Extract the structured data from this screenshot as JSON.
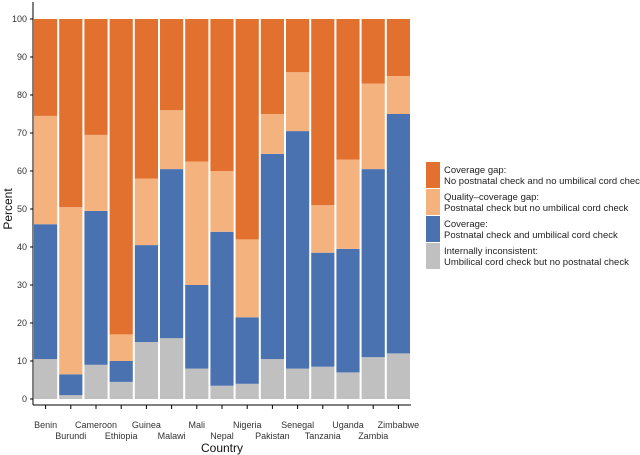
{
  "chart_data": {
    "type": "bar",
    "stacked": true,
    "xlabel": "Country",
    "ylabel": "Percent",
    "ylim": [
      0,
      100
    ],
    "yticks": [
      0,
      10,
      20,
      30,
      40,
      50,
      60,
      70,
      80,
      90,
      100
    ],
    "categories": [
      "Benin",
      "Burundi",
      "Cameroon",
      "Ethiopia",
      "Guinea",
      "Malawi",
      "Mali",
      "Nepal",
      "Nigeria",
      "Pakistan",
      "Senegal",
      "Tanzania",
      "Uganda",
      "Zambia",
      "Zimbabwe"
    ],
    "legend_position": "right",
    "series": [
      {
        "name": "Internally inconsistent",
        "label_line1": "Internally inconsistent:",
        "label_line2": "Umbilical cord check but no postnatal check",
        "color": "#c0c0c0",
        "values": [
          10.5,
          1,
          9,
          4.5,
          15,
          16,
          8,
          3.5,
          4,
          10.5,
          8,
          8.5,
          7,
          11,
          12
        ]
      },
      {
        "name": "Coverage",
        "label_line1": "Coverage:",
        "label_line2": "Postnatal check and umbilical cord check",
        "color": "#4a72b0",
        "values": [
          35.5,
          5.5,
          40.5,
          5.5,
          25.5,
          44.5,
          22,
          40.5,
          17.5,
          54,
          62.5,
          30,
          32.5,
          49.5,
          63
        ]
      },
      {
        "name": "Quality-coverage gap",
        "label_line1": "Quality–coverage gap:",
        "label_line2": "Postnatal check but no umbilical cord check",
        "color": "#f4b27f",
        "values": [
          28.5,
          44,
          20,
          7,
          17.5,
          15.5,
          32.5,
          16,
          20.5,
          10.5,
          15.5,
          12.5,
          23.5,
          22.5,
          10
        ]
      },
      {
        "name": "Coverage gap",
        "label_line1": "Coverage gap:",
        "label_line2": "No postnatal check and no umbilical cord check",
        "color": "#e2712f",
        "values": [
          25.5,
          49.5,
          30.5,
          83,
          42,
          24,
          37.5,
          40,
          58,
          25,
          14,
          49,
          37,
          17,
          15
        ]
      }
    ]
  }
}
